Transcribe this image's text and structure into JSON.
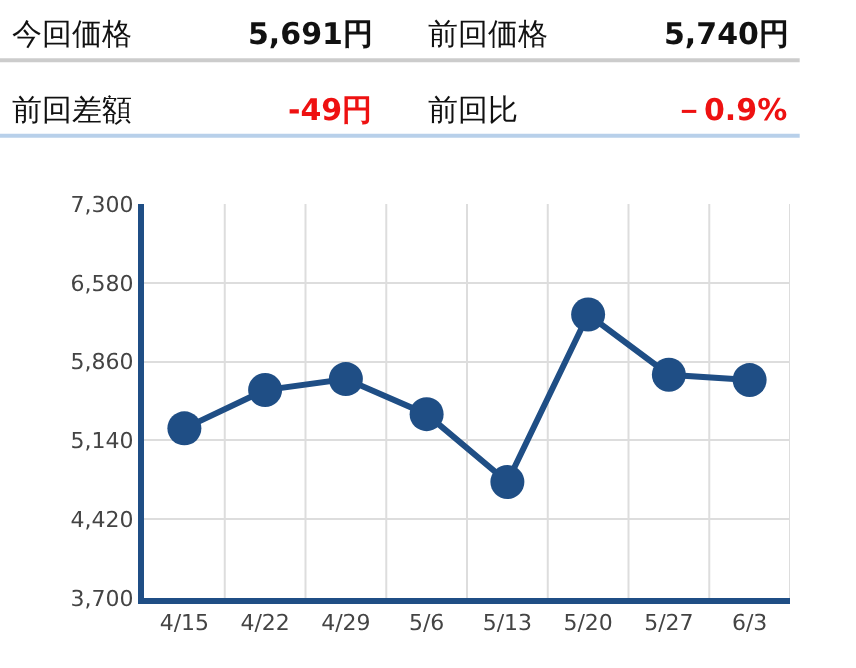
{
  "chart_data": {
    "type": "line",
    "annotations": [
      "今回価格",
      "5,691円",
      "前回価格",
      "5,740円",
      "前回差額",
      "-49円",
      "前回比",
      "－0.9%"
    ],
    "categories": [
      "4/15",
      "4/22",
      "4/29",
      "5/6",
      "5/13",
      "5/20",
      "5/27",
      "6/3"
    ],
    "series": [
      {
        "color": "#1f4e85",
        "values": [
          5250,
          5600,
          5700,
          5380,
          4760,
          6290,
          5740,
          5691
        ]
      }
    ],
    "ylim": [
      3700,
      7300
    ],
    "yticks": [
      {
        "value": 3700,
        "label": "3,700"
      },
      {
        "value": 4420,
        "label": "4,420"
      },
      {
        "value": 5140,
        "label": "5,140"
      },
      {
        "value": 5860,
        "label": "5,860"
      },
      {
        "value": 6580,
        "label": "6,580"
      },
      {
        "value": 7300,
        "label": "7,300"
      }
    ],
    "grid": true,
    "marker": "circle",
    "line_style": "solid",
    "legend": false
  }
}
